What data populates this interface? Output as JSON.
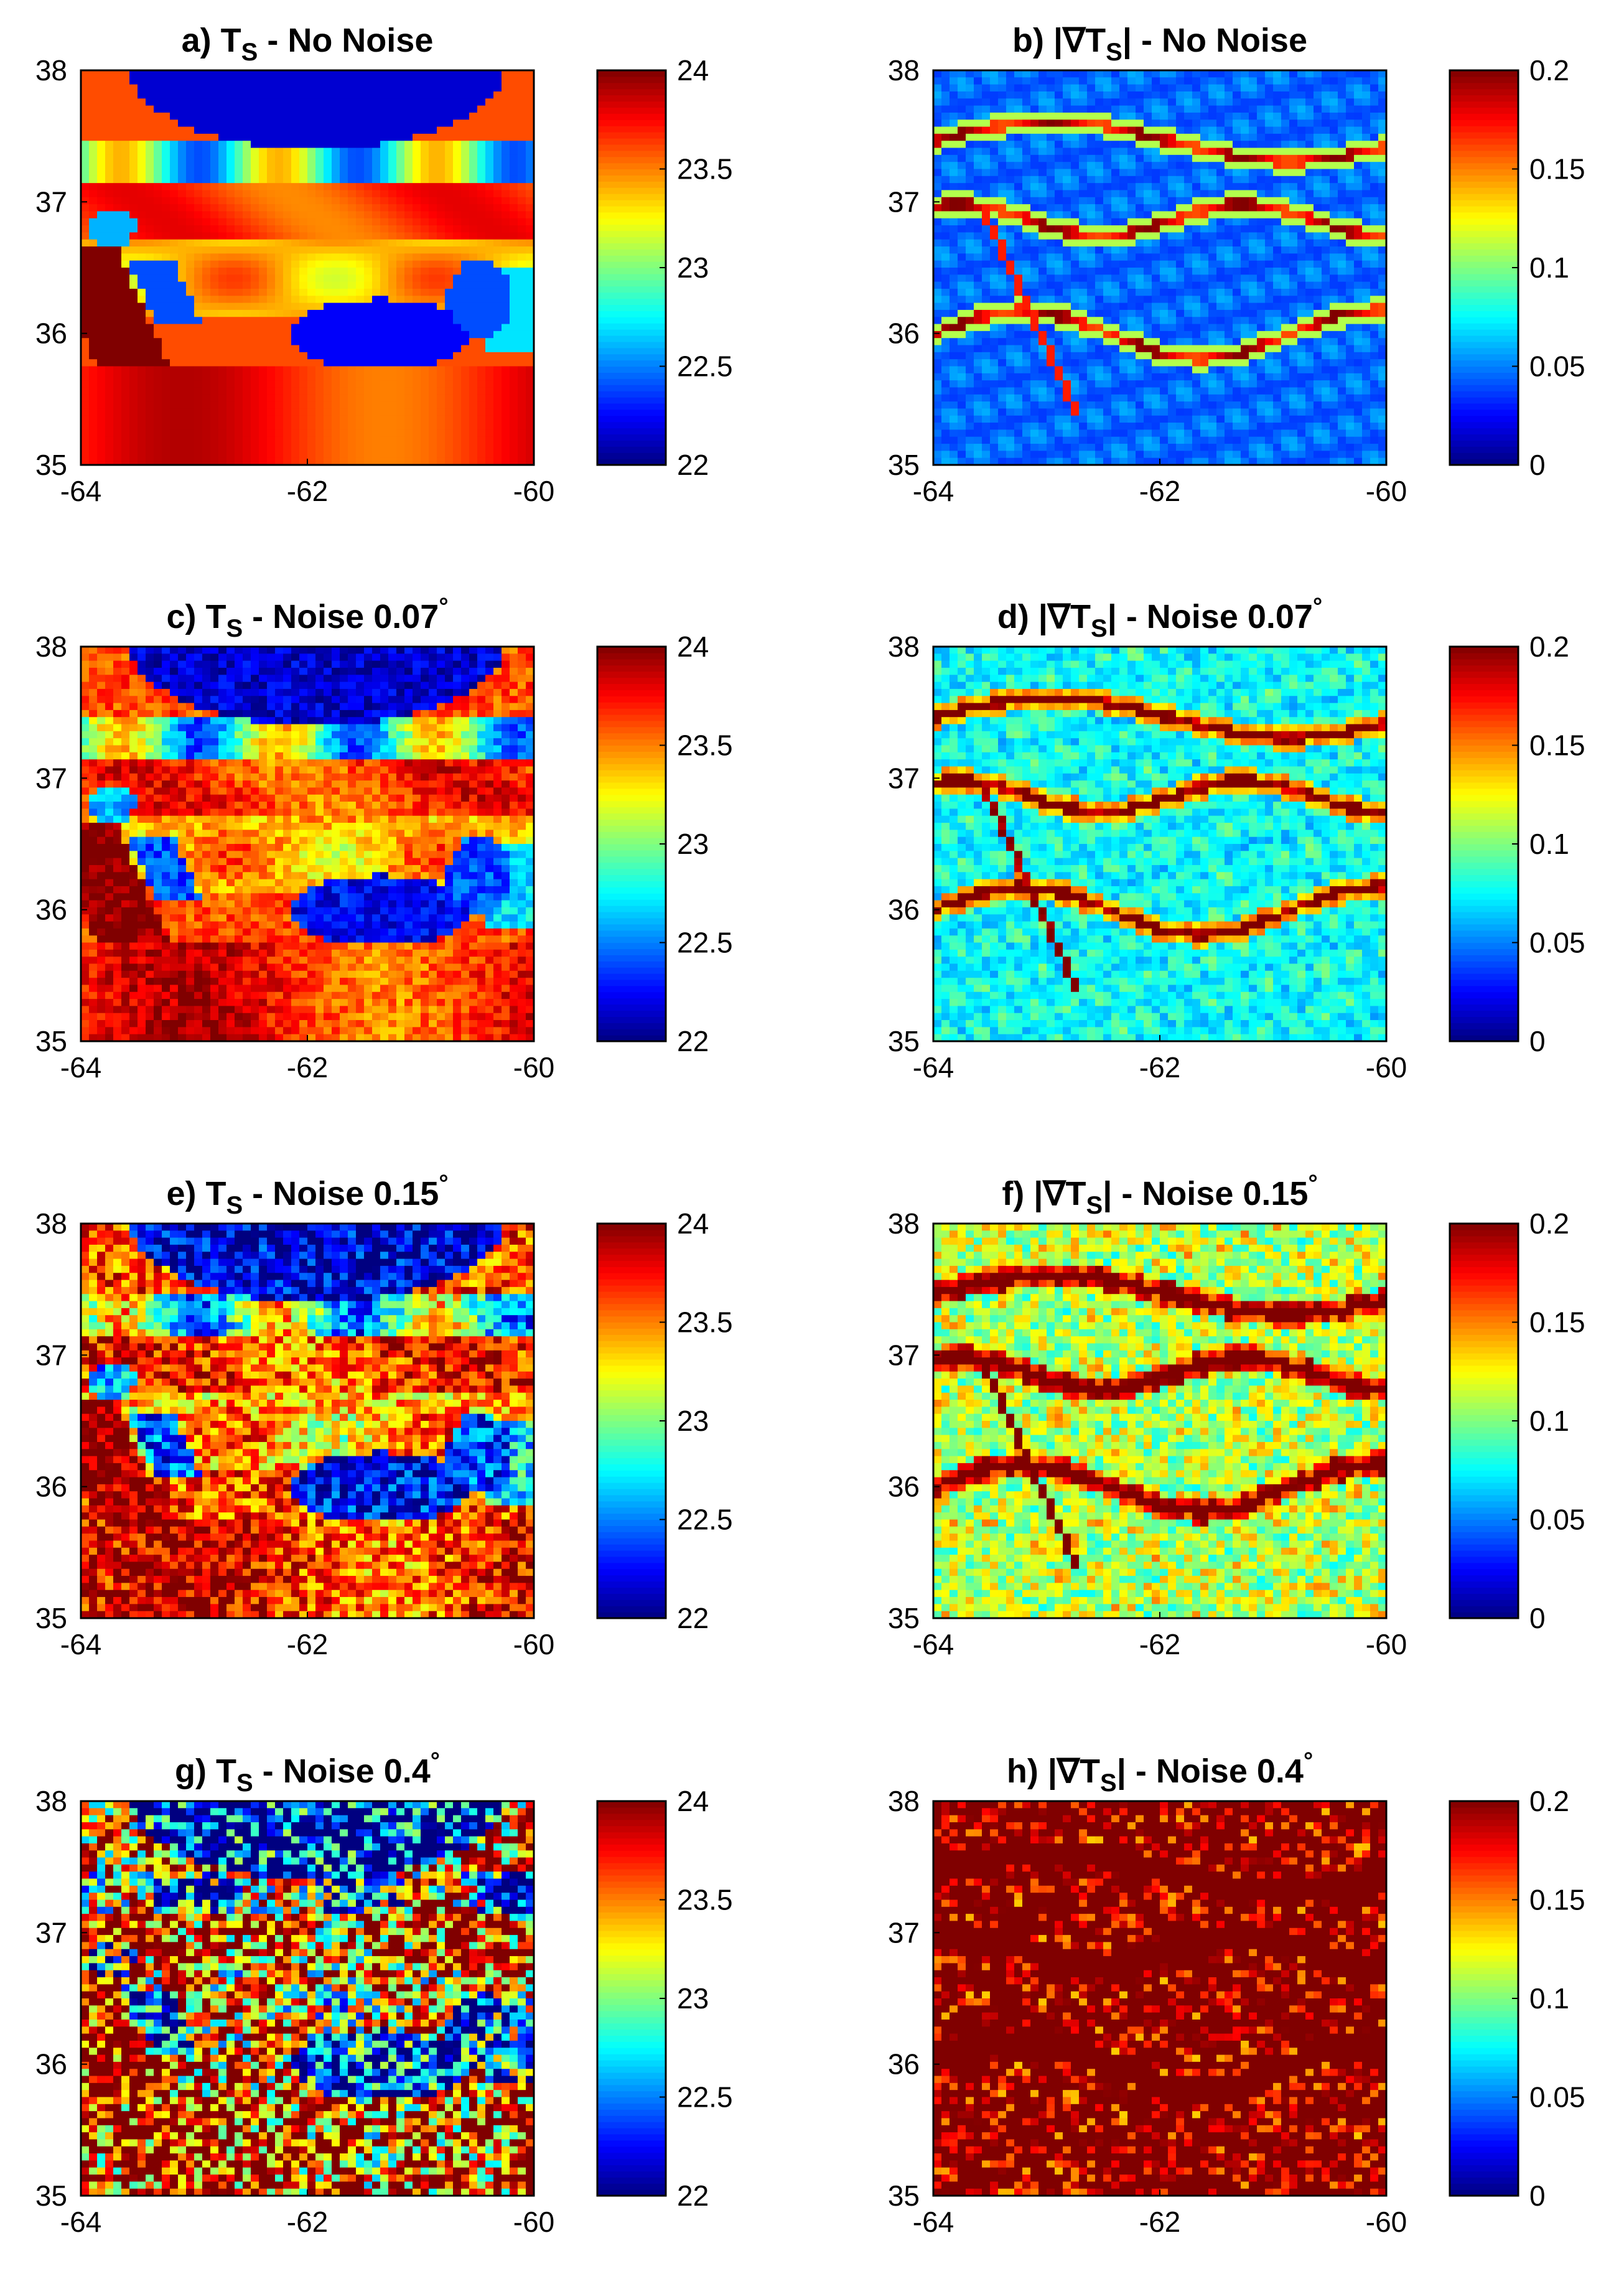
{
  "figure": {
    "panels": [
      {
        "label": "a)",
        "title": "T",
        "subscript": "S",
        "suffix": " - No Noise",
        "degree": "",
        "variable": "Ts",
        "noise": 0
      },
      {
        "label": "b)",
        "title": "|∇T",
        "subscript": "S",
        "suffix": "| - No Noise",
        "degree": "",
        "variable": "grad",
        "noise": 0
      },
      {
        "label": "c)",
        "title": "T",
        "subscript": "S",
        "suffix": " - Noise 0.07",
        "degree": "°",
        "variable": "Ts",
        "noise": 0.07
      },
      {
        "label": "d)",
        "title": "|∇T",
        "subscript": "S",
        "suffix": "| - Noise 0.07",
        "degree": "°",
        "variable": "grad",
        "noise": 0.07
      },
      {
        "label": "e)",
        "title": "T",
        "subscript": "S",
        "suffix": " - Noise 0.15",
        "degree": "°",
        "variable": "Ts",
        "noise": 0.15
      },
      {
        "label": "f)",
        "title": "|∇T",
        "subscript": "S",
        "suffix": "| - Noise 0.15",
        "degree": "°",
        "variable": "grad",
        "noise": 0.15
      },
      {
        "label": "g)",
        "title": "T",
        "subscript": "S",
        "suffix": " - Noise 0.4",
        "degree": "°",
        "variable": "Ts",
        "noise": 0.4
      },
      {
        "label": "h)",
        "title": "|∇T",
        "subscript": "S",
        "suffix": "| - Noise 0.4",
        "degree": "°",
        "variable": "grad",
        "noise": 0.4
      }
    ]
  },
  "chart_data": {
    "type": "heatmap",
    "colormap": "jet",
    "xlim": [
      -64,
      -60
    ],
    "ylim": [
      35,
      38
    ],
    "xticks": [
      "-64",
      "-62",
      "-60"
    ],
    "yticks": [
      "35",
      "36",
      "37",
      "38"
    ],
    "colorbars": {
      "Ts": {
        "range": [
          22,
          24
        ],
        "ticks": [
          "22",
          "22.5",
          "23",
          "23.5",
          "24"
        ]
      },
      "grad": {
        "range": [
          0,
          0.2
        ],
        "ticks": [
          "0",
          "0.05",
          "0.1",
          "0.15",
          "0.2"
        ]
      }
    },
    "noise_levels": [
      0,
      0.07,
      0.15,
      0.4
    ]
  }
}
